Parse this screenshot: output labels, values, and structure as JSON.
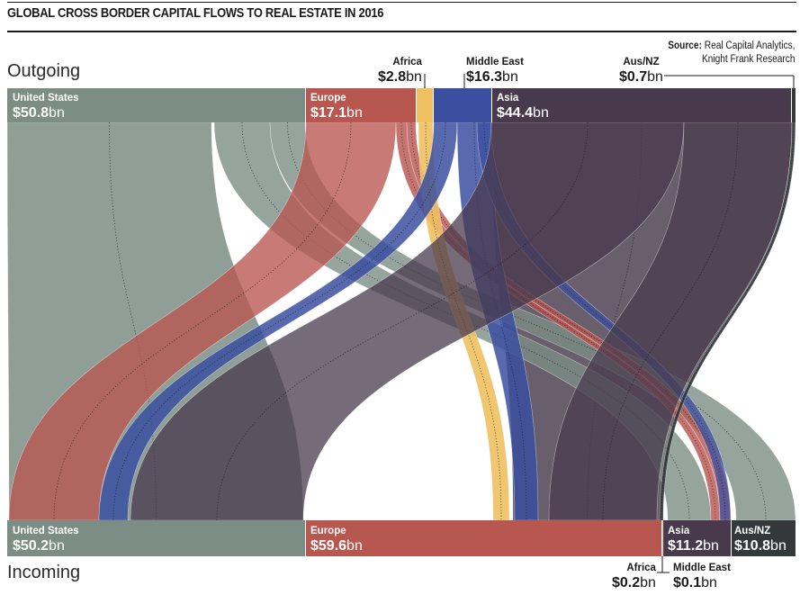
{
  "title": "GLOBAL CROSS BORDER CAPITAL FLOWS TO REAL ESTATE IN 2016",
  "source": {
    "label": "Source:",
    "line1": "Real Capital Analytics,",
    "line2": "Knight Frank Research"
  },
  "outgoing_label": "Outgoing",
  "incoming_label": "Incoming",
  "unit": "bn",
  "colors": {
    "us": "#7c8d86",
    "europe": "#b85650",
    "africa": "#f0c060",
    "middle_east": "#3b4fa0",
    "asia": "#483a4c",
    "aus_nz": "#33383b"
  },
  "outgoing": [
    {
      "key": "us",
      "name": "United States",
      "value": "$50.8"
    },
    {
      "key": "europe",
      "name": "Europe",
      "value": "$17.1"
    },
    {
      "key": "africa",
      "name": "Africa",
      "value": "$2.8"
    },
    {
      "key": "middle_east",
      "name": "Middle East",
      "value": "$16.3"
    },
    {
      "key": "asia",
      "name": "Asia",
      "value": "$44.4"
    },
    {
      "key": "aus_nz",
      "name": "Aus/NZ",
      "value": "$0.7"
    }
  ],
  "incoming": [
    {
      "key": "us",
      "name": "United States",
      "value": "$50.2"
    },
    {
      "key": "europe",
      "name": "Europe",
      "value": "$59.6"
    },
    {
      "key": "africa",
      "name": "Africa",
      "value": "$0.2"
    },
    {
      "key": "middle_east",
      "name": "Middle East",
      "value": "$0.1"
    },
    {
      "key": "asia",
      "name": "Asia",
      "value": "$11.2"
    },
    {
      "key": "aus_nz",
      "name": "Aus/NZ",
      "value": "$10.8"
    }
  ]
}
